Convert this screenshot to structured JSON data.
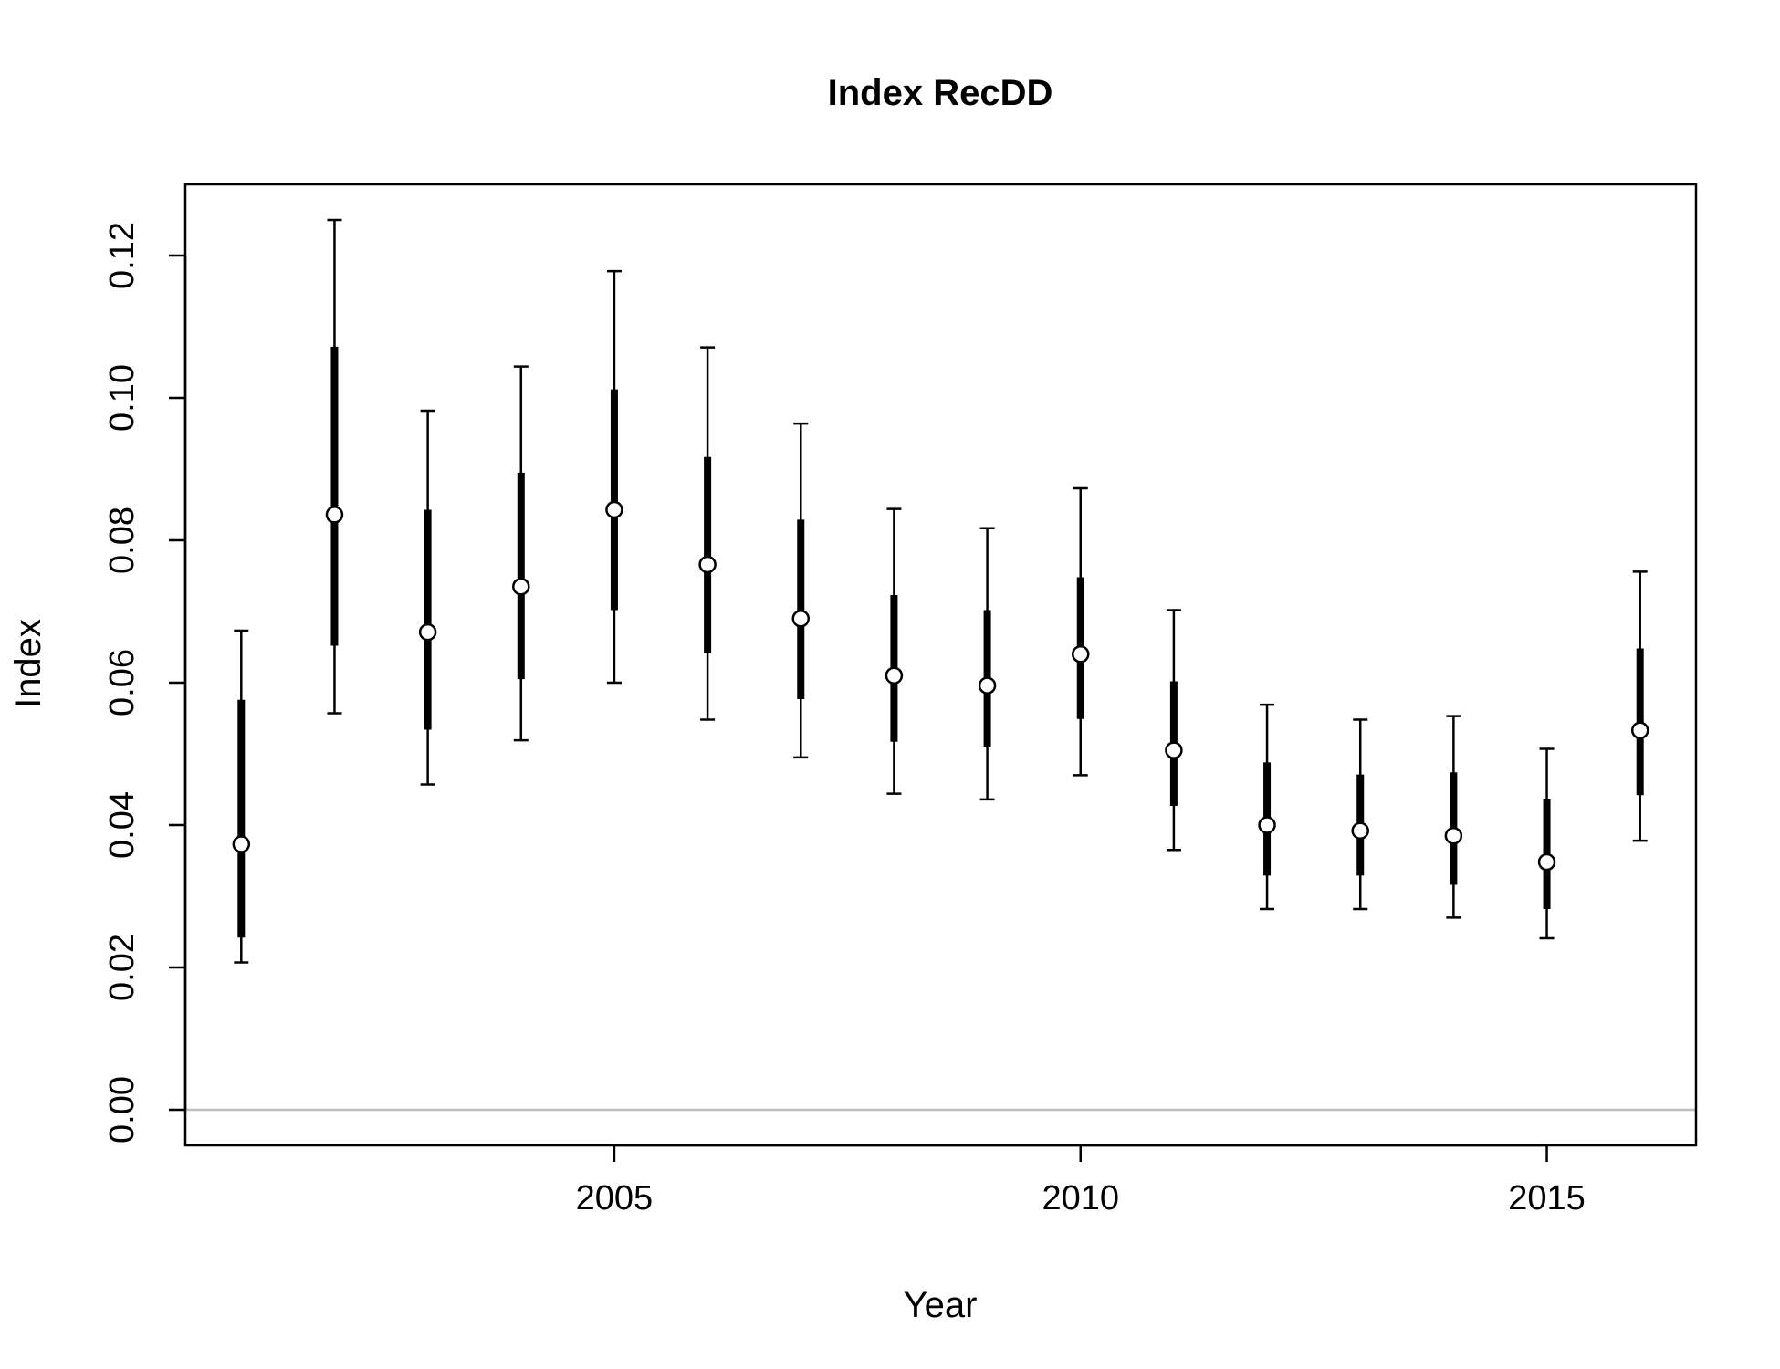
{
  "chart_data": {
    "type": "scatter",
    "title": "Index RecDD",
    "xlabel": "Year",
    "ylabel": "Index",
    "xlim": [
      2000.4,
      2016.6
    ],
    "ylim": [
      -0.005,
      0.13
    ],
    "x_ticks": [
      2005,
      2010,
      2015
    ],
    "y_ticks": [
      0.0,
      0.02,
      0.04,
      0.06,
      0.08,
      0.1,
      0.12
    ],
    "x_tick_labels": [
      "2005",
      "2010",
      "2015"
    ],
    "y_tick_labels": [
      "0.00",
      "0.02",
      "0.04",
      "0.06",
      "0.08",
      "0.10",
      "0.12"
    ],
    "reference_line": {
      "y": 0,
      "color": "#bebebe"
    },
    "grid": false,
    "series": [
      {
        "x": [
          2001,
          2002,
          2003,
          2004,
          2005,
          2006,
          2007,
          2008,
          2009,
          2010,
          2011,
          2012,
          2013,
          2014,
          2015,
          2016
        ],
        "y": [
          0.0373,
          0.0836,
          0.0671,
          0.0735,
          0.0843,
          0.0766,
          0.069,
          0.061,
          0.0596,
          0.064,
          0.0505,
          0.04,
          0.0392,
          0.0385,
          0.0348,
          0.0533
        ],
        "inner_lower": [
          0.0242,
          0.0652,
          0.0534,
          0.0605,
          0.0702,
          0.0641,
          0.0577,
          0.0517,
          0.0509,
          0.0549,
          0.0427,
          0.0329,
          0.0329,
          0.0316,
          0.0282,
          0.0442
        ],
        "inner_upper": [
          0.0576,
          0.1072,
          0.0843,
          0.0895,
          0.1012,
          0.0917,
          0.0829,
          0.0723,
          0.0702,
          0.0748,
          0.0602,
          0.0488,
          0.0471,
          0.0474,
          0.0436,
          0.0648
        ],
        "outer_lower": [
          0.0207,
          0.0557,
          0.0457,
          0.0519,
          0.06,
          0.0548,
          0.0495,
          0.0444,
          0.0436,
          0.047,
          0.0365,
          0.0282,
          0.0282,
          0.027,
          0.0241,
          0.0378
        ],
        "outer_upper": [
          0.0673,
          0.125,
          0.0982,
          0.1044,
          0.1178,
          0.1071,
          0.0964,
          0.0844,
          0.0817,
          0.0873,
          0.0702,
          0.0569,
          0.0548,
          0.0553,
          0.0507,
          0.0756
        ]
      }
    ],
    "colors": {
      "marks": "#000000",
      "point_fill": "#ffffff",
      "reference": "#bebebe"
    }
  }
}
